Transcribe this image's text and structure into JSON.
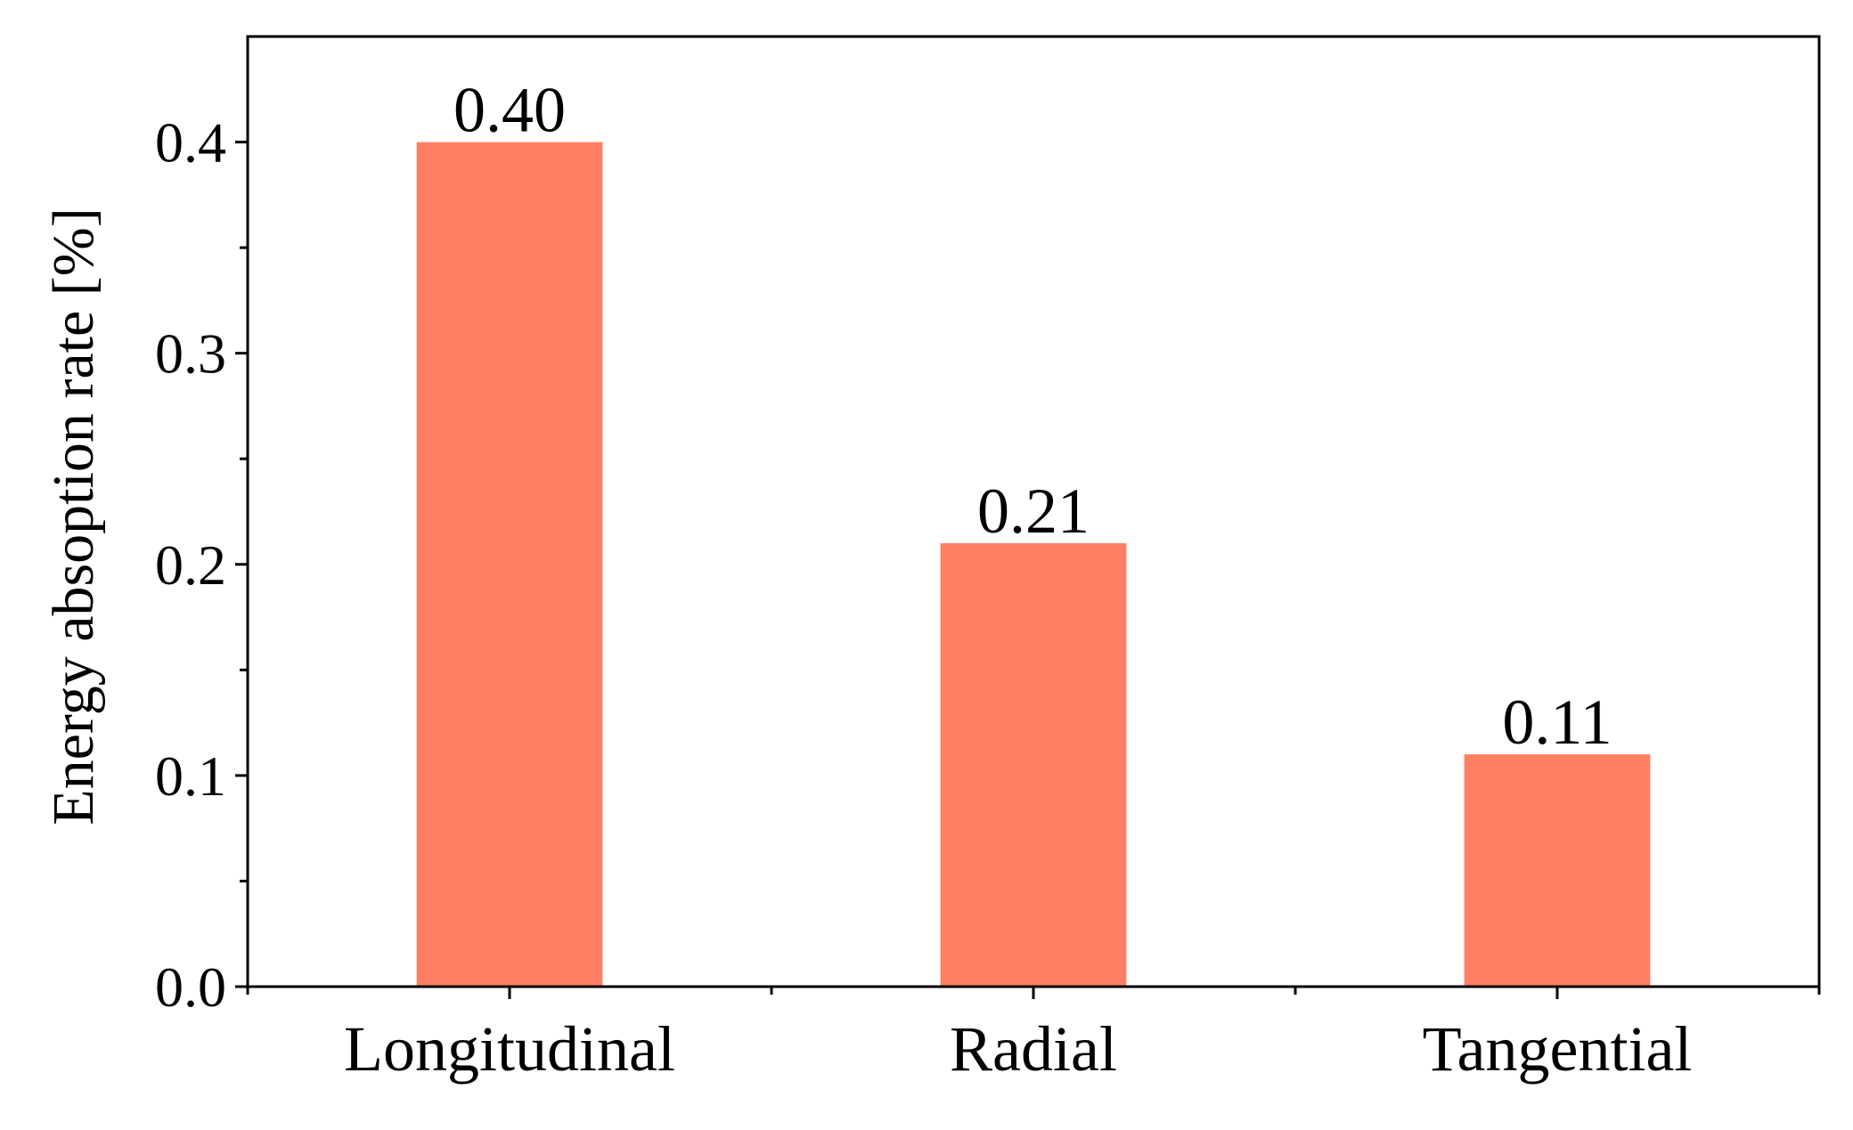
{
  "chart_data": {
    "type": "bar",
    "title": "",
    "xlabel": "",
    "ylabel": "Energy absoption rate [%]",
    "categories": [
      "Longitudinal",
      "Radial",
      "Tangential"
    ],
    "values": [
      0.4,
      0.21,
      0.11
    ],
    "data_labels": [
      "0.40",
      "0.21",
      "0.11"
    ],
    "ylim": [
      0,
      0.45
    ],
    "yticks": [
      0.0,
      0.1,
      0.2,
      0.3,
      0.4
    ],
    "ytick_labels": [
      "0.0",
      "0.1",
      "0.2",
      "0.3",
      "0.4"
    ],
    "grid": false,
    "legend": "none",
    "bar_color": "#ff7f62"
  }
}
